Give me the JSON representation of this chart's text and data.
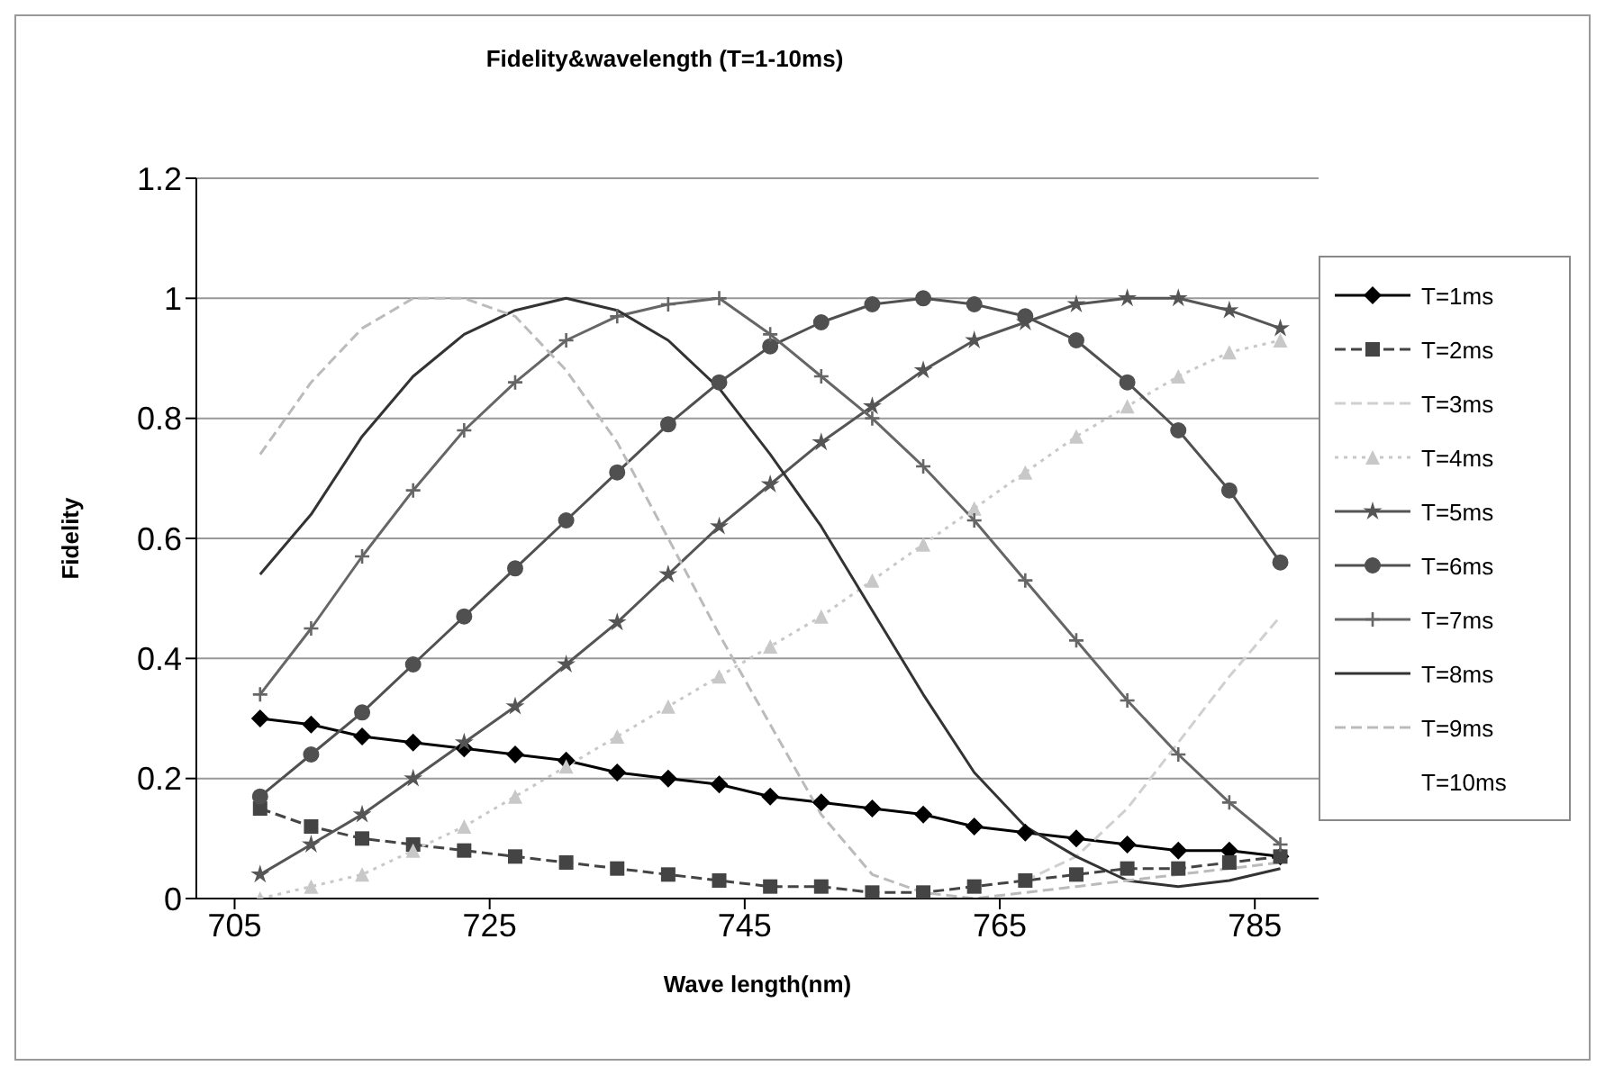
{
  "chart_data": {
    "type": "line",
    "title": "Fidelity&wavelength (T=1-10ms)",
    "xlabel": "Wave length(nm)",
    "ylabel": "Fidelity",
    "x": [
      707,
      711,
      715,
      719,
      723,
      727,
      731,
      735,
      739,
      743,
      747,
      751,
      755,
      759,
      763,
      767,
      771,
      775,
      779,
      783,
      787
    ],
    "xlim": [
      702,
      790
    ],
    "xticks": [
      705,
      725,
      745,
      765,
      785
    ],
    "ylim": [
      0,
      1.2
    ],
    "yticks": [
      0,
      0.2,
      0.4,
      0.6,
      0.8,
      1,
      1.2
    ],
    "grid": "y",
    "legend": "right",
    "series": [
      {
        "name": "T=1ms",
        "color": "#000000",
        "marker": "diamond",
        "line_style": "solid",
        "values": [
          0.3,
          0.29,
          0.27,
          0.26,
          0.25,
          0.24,
          0.23,
          0.21,
          0.2,
          0.19,
          0.17,
          0.16,
          0.15,
          0.14,
          0.12,
          0.11,
          0.1,
          0.09,
          0.08,
          0.08,
          0.07
        ]
      },
      {
        "name": "T=2ms",
        "color": "#444444",
        "marker": "square",
        "line_style": "dashed",
        "values": [
          0.15,
          0.12,
          0.1,
          0.09,
          0.08,
          0.07,
          0.06,
          0.05,
          0.04,
          0.03,
          0.02,
          0.02,
          0.01,
          0.01,
          0.02,
          0.03,
          0.04,
          0.05,
          0.05,
          0.06,
          0.07
        ]
      },
      {
        "name": "T=3ms",
        "color": "#d0d0d0",
        "marker": "none",
        "line_style": "dashed",
        "values": [
          null,
          null,
          null,
          null,
          null,
          null,
          null,
          null,
          null,
          null,
          null,
          null,
          null,
          null,
          null,
          0.03,
          0.07,
          0.15,
          0.26,
          0.37,
          0.47
        ]
      },
      {
        "name": "T=4ms",
        "color": "#c8c8c8",
        "marker": "triangle",
        "line_style": "dotted",
        "values": [
          0.0,
          0.02,
          0.04,
          0.08,
          0.12,
          0.17,
          0.22,
          0.27,
          0.32,
          0.37,
          0.42,
          0.47,
          0.53,
          0.59,
          0.65,
          0.71,
          0.77,
          0.82,
          0.87,
          0.91,
          0.93
        ]
      },
      {
        "name": "T=5ms",
        "color": "#555555",
        "marker": "star",
        "line_style": "solid",
        "values": [
          0.04,
          0.09,
          0.14,
          0.2,
          0.26,
          0.32,
          0.39,
          0.46,
          0.54,
          0.62,
          0.69,
          0.76,
          0.82,
          0.88,
          0.93,
          0.96,
          0.99,
          1.0,
          1.0,
          0.98,
          0.95
        ]
      },
      {
        "name": "T=6ms",
        "color": "#505050",
        "marker": "circle",
        "line_style": "solid",
        "values": [
          0.17,
          0.24,
          0.31,
          0.39,
          0.47,
          0.55,
          0.63,
          0.71,
          0.79,
          0.86,
          0.92,
          0.96,
          0.99,
          1.0,
          0.99,
          0.97,
          0.93,
          0.86,
          0.78,
          0.68,
          0.56
        ]
      },
      {
        "name": "T=7ms",
        "color": "#666666",
        "marker": "cross",
        "line_style": "solid",
        "values": [
          0.34,
          0.45,
          0.57,
          0.68,
          0.78,
          0.86,
          0.93,
          0.97,
          0.99,
          1.0,
          0.94,
          0.87,
          0.8,
          0.72,
          0.63,
          0.53,
          0.43,
          0.33,
          0.24,
          0.16,
          0.09
        ]
      },
      {
        "name": "T=8ms",
        "color": "#333333",
        "marker": "none",
        "line_style": "solid",
        "values": [
          0.54,
          0.64,
          0.77,
          0.87,
          0.94,
          0.98,
          1.0,
          0.98,
          0.93,
          0.85,
          0.74,
          0.62,
          0.48,
          0.34,
          0.21,
          0.12,
          0.07,
          0.03,
          0.02,
          0.03,
          0.05
        ]
      },
      {
        "name": "T=9ms",
        "color": "#bbbbbb",
        "marker": "none",
        "line_style": "dashed",
        "values": [
          0.74,
          0.86,
          0.95,
          1.0,
          1.0,
          0.97,
          0.88,
          0.76,
          0.6,
          0.44,
          0.29,
          0.14,
          0.04,
          0.01,
          0.0,
          0.01,
          0.02,
          0.03,
          0.04,
          0.05,
          0.06
        ]
      },
      {
        "name": "T=10ms",
        "values": [
          null,
          null,
          null,
          null,
          null,
          null,
          null,
          null,
          null,
          null,
          null,
          null,
          null,
          null,
          null,
          null,
          null,
          null,
          null,
          null,
          null
        ]
      }
    ]
  }
}
